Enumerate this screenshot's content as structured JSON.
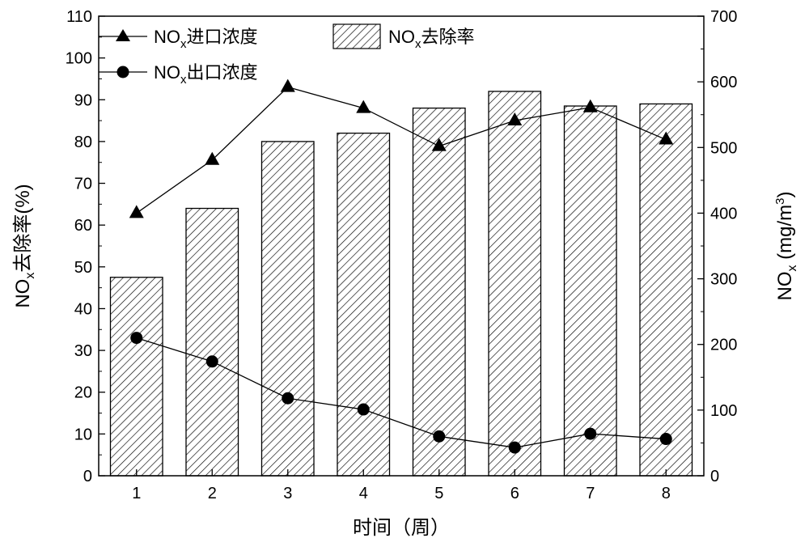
{
  "chart_data": {
    "type": "bar+line",
    "categories": [
      "1",
      "2",
      "3",
      "4",
      "5",
      "6",
      "7",
      "8"
    ],
    "xlabel": "时间（周）",
    "ylabel_left": {
      "main": "NO",
      "sub": "x",
      "rest": "去除率(%)"
    },
    "ylabel_right": {
      "main": "NO",
      "sub": "x",
      "rest": " (mg/m",
      "sup": "3",
      "end": ")"
    },
    "ylim_left": [
      0,
      110
    ],
    "yticks_left": [
      0,
      10,
      20,
      30,
      40,
      50,
      60,
      70,
      80,
      90,
      100,
      110
    ],
    "ylim_right": [
      0,
      700
    ],
    "yticks_right": [
      0,
      100,
      200,
      300,
      400,
      500,
      600,
      700
    ],
    "series": [
      {
        "name": {
          "main": "NO",
          "sub": "x",
          "rest": "去除率"
        },
        "type": "bar",
        "axis": "left",
        "pattern": "hatch",
        "values": [
          47.5,
          64,
          80,
          82,
          88,
          92,
          88.5,
          89
        ]
      },
      {
        "name": {
          "main": "NO",
          "sub": "x",
          "rest": "进口浓度"
        },
        "type": "line",
        "marker": "triangle",
        "axis": "right",
        "values": [
          400,
          481,
          592,
          560,
          502,
          541,
          561,
          512
        ]
      },
      {
        "name": {
          "main": "NO",
          "sub": "x",
          "rest": "出口浓度"
        },
        "type": "line",
        "marker": "circle",
        "axis": "right",
        "values": [
          210,
          174,
          118,
          101,
          60,
          43,
          64,
          56
        ]
      }
    ],
    "legend_position": "top-left",
    "grid": false
  }
}
